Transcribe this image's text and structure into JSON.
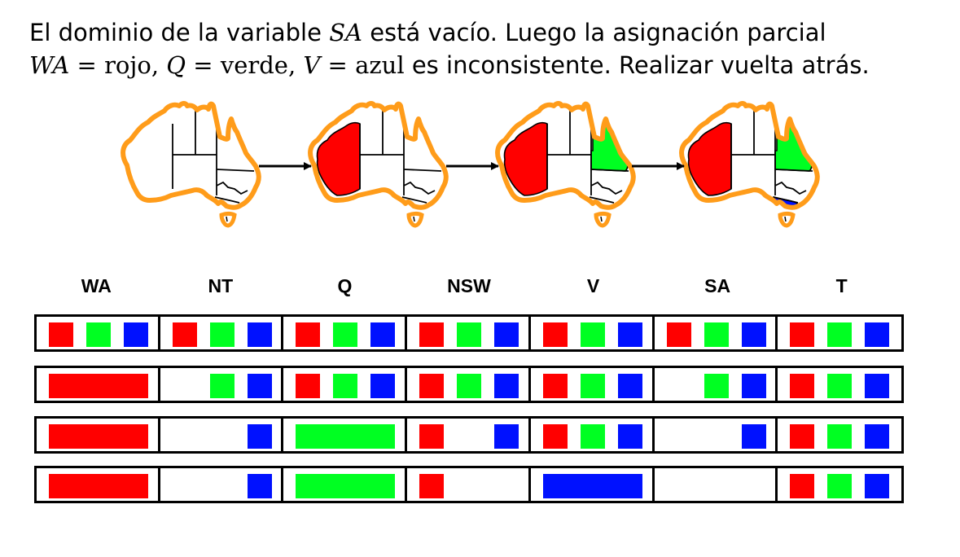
{
  "caption": {
    "line1_a": "El dominio de la variable ",
    "line1_sa": "SA",
    "line1_b": " está vacío. Luego la asignación parcial",
    "wa": "WA",
    "eq": " = ",
    "rojo": "rojo",
    "comma": ", ",
    "q": "Q",
    "verde": "verde",
    "v": "V",
    "azul": "azul",
    "line2_b": " es inconsistente. Realizar vuelta atrás."
  },
  "colors": {
    "red": "#ff0000",
    "green": "#00ff22",
    "blue": "#0011ff",
    "outline": "#ff9c1a"
  },
  "variables": [
    "WA",
    "NT",
    "Q",
    "NSW",
    "V",
    "SA",
    "T"
  ],
  "map_steps": [
    {
      "WA": null,
      "Q": null,
      "V": null
    },
    {
      "WA": "red",
      "Q": null,
      "V": null
    },
    {
      "WA": "red",
      "Q": "green",
      "V": null
    },
    {
      "WA": "red",
      "Q": "green",
      "V": "blue"
    }
  ],
  "domain_rows": [
    [
      [
        "red",
        "green",
        "blue"
      ],
      [
        "red",
        "green",
        "blue"
      ],
      [
        "red",
        "green",
        "blue"
      ],
      [
        "red",
        "green",
        "blue"
      ],
      [
        "red",
        "green",
        "blue"
      ],
      [
        "red",
        "green",
        "blue"
      ],
      [
        "red",
        "green",
        "blue"
      ]
    ],
    [
      "red",
      [
        "green",
        "blue"
      ],
      [
        "red",
        "green",
        "blue"
      ],
      [
        "red",
        "green",
        "blue"
      ],
      [
        "red",
        "green",
        "blue"
      ],
      [
        "green",
        "blue"
      ],
      [
        "red",
        "green",
        "blue"
      ]
    ],
    [
      "red",
      [
        "blue"
      ],
      "green",
      [
        "red",
        "blue"
      ],
      [
        "red",
        "green",
        "blue"
      ],
      [
        "blue"
      ],
      [
        "red",
        "green",
        "blue"
      ]
    ],
    [
      "red",
      [
        "blue"
      ],
      "green",
      [
        "red"
      ],
      "blue",
      [],
      [
        "red",
        "green",
        "blue"
      ]
    ]
  ]
}
